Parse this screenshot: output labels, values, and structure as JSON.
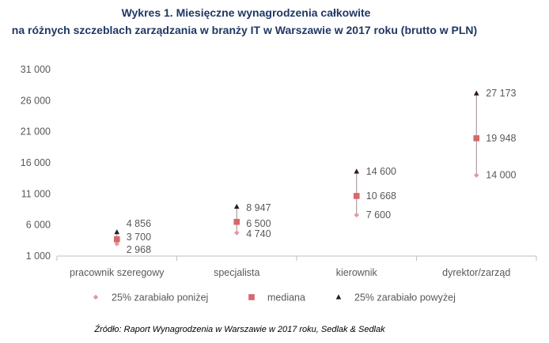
{
  "title_line1": "Wykres 1. Miesięczne wynagrodzenia całkowite",
  "title_line2": "na różnych szczeblach zarządzania w branży IT w Warszawie w 2017 roku (brutto w PLN)",
  "source": "Źródło: Raport Wynagrodzenia w Warszawie w 2017 roku, Sedlak & Sedlak",
  "colors": {
    "low": "#e8959a",
    "median": "#d9666c",
    "high": "#2d1b1e",
    "line": "#9a8a8c",
    "text": "#595959",
    "axis": "#bfbfbf"
  },
  "chart_data": {
    "type": "scatter",
    "categories": [
      "pracownik szeregowy",
      "specjalista",
      "kierownik",
      "dyrektor/zarząd"
    ],
    "series": [
      {
        "name": "25% zarabiało poniżej",
        "marker": "diamond",
        "values": [
          2968,
          4740,
          7600,
          14000
        ],
        "labels": [
          "2 968",
          "4 740",
          "7 600",
          "14 000"
        ]
      },
      {
        "name": "mediana",
        "marker": "square",
        "values": [
          3700,
          6500,
          10668,
          19948
        ],
        "labels": [
          "3 700",
          "6 500",
          "10 668",
          "19 948"
        ]
      },
      {
        "name": "25% zarabiało powyżej",
        "marker": "triangle",
        "values": [
          4856,
          8947,
          14600,
          27173
        ],
        "labels": [
          "4 856",
          "8 947",
          "14 600",
          "27 173"
        ]
      }
    ],
    "ylim": [
      1000,
      31000
    ],
    "yticks": [
      1000,
      6000,
      11000,
      16000,
      21000,
      26000,
      31000
    ],
    "ytick_labels": [
      "1 000",
      "6 000",
      "11 000",
      "16 000",
      "21 000",
      "26 000",
      "31 000"
    ],
    "grid": false,
    "legend_position": "bottom"
  }
}
